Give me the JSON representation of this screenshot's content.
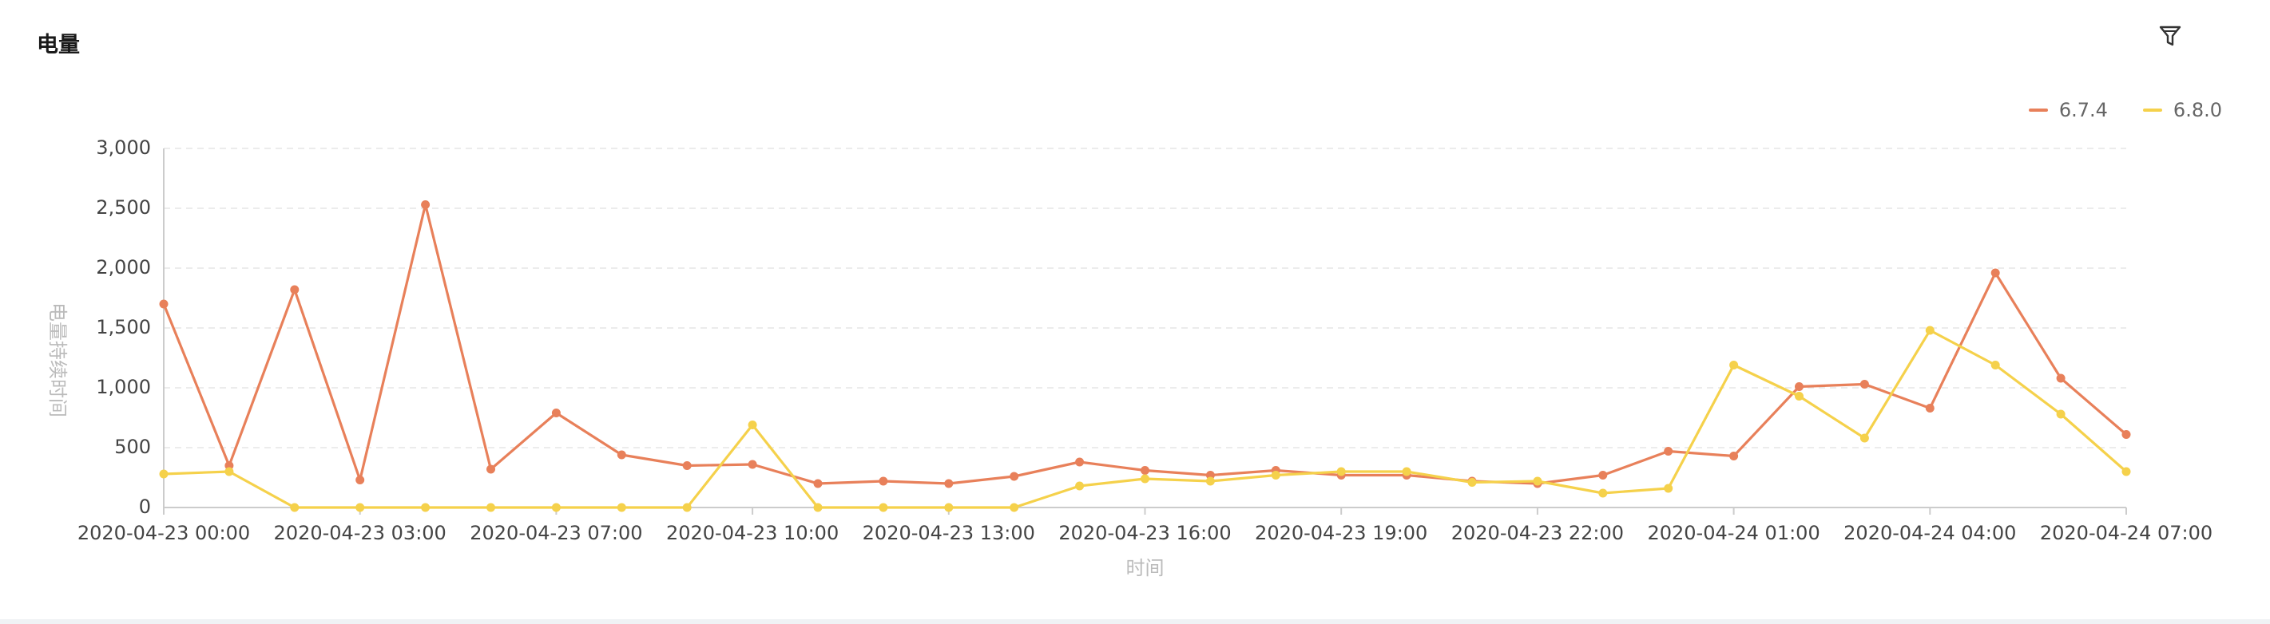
{
  "header": {
    "title": "电量"
  },
  "toolbar": {
    "filter_icon": "filter-icon"
  },
  "chart_data": {
    "type": "line",
    "title": "电量",
    "xlabel": "时间",
    "ylabel": "电量持续时间",
    "ylim": [
      0,
      3000
    ],
    "yticks": [
      "0",
      "500",
      "1,000",
      "1,500",
      "2,000",
      "2,500",
      "3,000"
    ],
    "xtick_labels": [
      "2020-04-23 00:00",
      "2020-04-23 03:00",
      "2020-04-23 07:00",
      "2020-04-23 10:00",
      "2020-04-23 13:00",
      "2020-04-23 16:00",
      "2020-04-23 19:00",
      "2020-04-23 22:00",
      "2020-04-24 01:00",
      "2020-04-24 04:00",
      "2020-04-24 07:00"
    ],
    "grid": true,
    "legend_position": "top-right",
    "series": [
      {
        "name": "6.7.4",
        "color": "#e8805a",
        "values": [
          1700,
          350,
          1820,
          230,
          2530,
          320,
          790,
          440,
          350,
          360,
          200,
          220,
          200,
          260,
          380,
          310,
          270,
          310,
          270,
          270,
          220,
          200,
          270,
          470,
          430,
          1010,
          1030,
          830,
          1960,
          1080,
          610
        ]
      },
      {
        "name": "6.8.0",
        "color": "#f5d14b",
        "values": [
          280,
          300,
          0,
          0,
          0,
          0,
          0,
          0,
          0,
          690,
          0,
          0,
          0,
          0,
          180,
          240,
          220,
          270,
          300,
          300,
          210,
          220,
          120,
          160,
          1190,
          930,
          580,
          1480,
          1190,
          780,
          300
        ]
      }
    ]
  }
}
